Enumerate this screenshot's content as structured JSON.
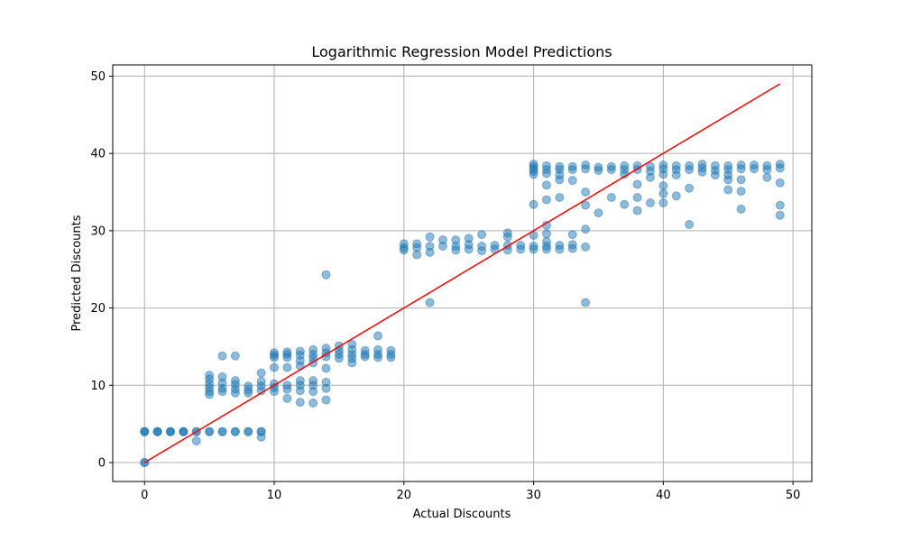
{
  "chart_data": {
    "type": "scatter",
    "title": "Logarithmic Regression Model Predictions",
    "xlabel": "Actual Discounts",
    "ylabel": "Predicted Discounts",
    "xlim": [
      -2.45,
      51.45
    ],
    "ylim": [
      -2.45,
      51.45
    ],
    "xticks": [
      0,
      10,
      20,
      30,
      40,
      50
    ],
    "yticks": [
      0,
      10,
      20,
      30,
      40,
      50
    ],
    "grid": true,
    "legend": "none",
    "colors": {
      "points": "#1f77b4",
      "line": "#ff0000",
      "grid": "#b0b0b0"
    },
    "point_alpha": 0.5,
    "reference_line": {
      "x": [
        0,
        49
      ],
      "y": [
        0,
        49
      ]
    },
    "points": [
      [
        0,
        0
      ],
      [
        0,
        0
      ],
      [
        0,
        4
      ],
      [
        0,
        4
      ],
      [
        0,
        4
      ],
      [
        1,
        4
      ],
      [
        1,
        4
      ],
      [
        1,
        4
      ],
      [
        2,
        4
      ],
      [
        2,
        4
      ],
      [
        2,
        4
      ],
      [
        3,
        4
      ],
      [
        3,
        4
      ],
      [
        3,
        4
      ],
      [
        4,
        4
      ],
      [
        4,
        4
      ],
      [
        4,
        2.8
      ],
      [
        5,
        4
      ],
      [
        5,
        4
      ],
      [
        5,
        11.3
      ],
      [
        5,
        10.8
      ],
      [
        5,
        10.2
      ],
      [
        5,
        9.7
      ],
      [
        5,
        9.2
      ],
      [
        5,
        8.8
      ],
      [
        6,
        4
      ],
      [
        6,
        4
      ],
      [
        6,
        13.8
      ],
      [
        6,
        11.1
      ],
      [
        6,
        10.3
      ],
      [
        6,
        9.6
      ],
      [
        6,
        9.2
      ],
      [
        7,
        4
      ],
      [
        7,
        4
      ],
      [
        7,
        13.8
      ],
      [
        7,
        10.6
      ],
      [
        7,
        10.1
      ],
      [
        7,
        9.5
      ],
      [
        7,
        9.0
      ],
      [
        8,
        4
      ],
      [
        8,
        4
      ],
      [
        8,
        9.9
      ],
      [
        8,
        9.4
      ],
      [
        8,
        9.0
      ],
      [
        9,
        4
      ],
      [
        9,
        4
      ],
      [
        9,
        3.3
      ],
      [
        9,
        11.6
      ],
      [
        9,
        10.5
      ],
      [
        9,
        9.9
      ],
      [
        9,
        9.3
      ],
      [
        10,
        14.2
      ],
      [
        10,
        13.9
      ],
      [
        10,
        13.6
      ],
      [
        10,
        12.3
      ],
      [
        10,
        10.2
      ],
      [
        10,
        9.7
      ],
      [
        10,
        9.2
      ],
      [
        11,
        14.3
      ],
      [
        11,
        14.0
      ],
      [
        11,
        13.6
      ],
      [
        11,
        12.3
      ],
      [
        11,
        10.0
      ],
      [
        11,
        9.5
      ],
      [
        11,
        8.3
      ],
      [
        12,
        14.4
      ],
      [
        12,
        13.9
      ],
      [
        12,
        13.2
      ],
      [
        12,
        12.5
      ],
      [
        12,
        10.6
      ],
      [
        12,
        10.0
      ],
      [
        12,
        9.3
      ],
      [
        12,
        7.8
      ],
      [
        13,
        14.6
      ],
      [
        13,
        14.0
      ],
      [
        13,
        13.5
      ],
      [
        13,
        12.9
      ],
      [
        13,
        10.6
      ],
      [
        13,
        10.0
      ],
      [
        13,
        9.2
      ],
      [
        13,
        7.7
      ],
      [
        14,
        24.3
      ],
      [
        14,
        14.8
      ],
      [
        14,
        14.2
      ],
      [
        14,
        13.7
      ],
      [
        14,
        12.2
      ],
      [
        14,
        10.4
      ],
      [
        14,
        9.6
      ],
      [
        14,
        8.1
      ],
      [
        15,
        15.1
      ],
      [
        15,
        14.5
      ],
      [
        15,
        14.0
      ],
      [
        15,
        13.5
      ],
      [
        16,
        15.3
      ],
      [
        16,
        14.6
      ],
      [
        16,
        14.0
      ],
      [
        16,
        13.5
      ],
      [
        16,
        12.9
      ],
      [
        17,
        14.5
      ],
      [
        17,
        14.0
      ],
      [
        17,
        13.7
      ],
      [
        18,
        16.4
      ],
      [
        18,
        14.6
      ],
      [
        18,
        14.0
      ],
      [
        18,
        13.6
      ],
      [
        19,
        14.5
      ],
      [
        19,
        14.0
      ],
      [
        19,
        13.6
      ],
      [
        20,
        28.3
      ],
      [
        20,
        27.8
      ],
      [
        20,
        27.5
      ],
      [
        21,
        28.3
      ],
      [
        21,
        27.8
      ],
      [
        21,
        26.9
      ],
      [
        22,
        29.2
      ],
      [
        22,
        28.0
      ],
      [
        22,
        27.2
      ],
      [
        22,
        20.7
      ],
      [
        23,
        28.8
      ],
      [
        23,
        28.0
      ],
      [
        24,
        28.8
      ],
      [
        24,
        28.0
      ],
      [
        24,
        27.5
      ],
      [
        25,
        29.0
      ],
      [
        25,
        28.2
      ],
      [
        25,
        27.6
      ],
      [
        26,
        29.5
      ],
      [
        26,
        28.0
      ],
      [
        26,
        27.4
      ],
      [
        27,
        28.1
      ],
      [
        27,
        27.6
      ],
      [
        28,
        29.7
      ],
      [
        28,
        29.2
      ],
      [
        28,
        28.1
      ],
      [
        28,
        27.5
      ],
      [
        29,
        28.1
      ],
      [
        29,
        27.6
      ],
      [
        30,
        38.6
      ],
      [
        30,
        38.3
      ],
      [
        30,
        38.0
      ],
      [
        30,
        37.7
      ],
      [
        30,
        37.3
      ],
      [
        30,
        33.4
      ],
      [
        30,
        29.4
      ],
      [
        30,
        28.0
      ],
      [
        30,
        27.6
      ],
      [
        31,
        38.4
      ],
      [
        31,
        37.9
      ],
      [
        31,
        37.4
      ],
      [
        31,
        35.9
      ],
      [
        31,
        34.0
      ],
      [
        31,
        30.7
      ],
      [
        31,
        29.6
      ],
      [
        31,
        28.6
      ],
      [
        31,
        28.0
      ],
      [
        31,
        27.6
      ],
      [
        32,
        38.3
      ],
      [
        32,
        37.9
      ],
      [
        32,
        37.2
      ],
      [
        32,
        36.6
      ],
      [
        32,
        34.3
      ],
      [
        32,
        28.1
      ],
      [
        32,
        27.6
      ],
      [
        33,
        38.3
      ],
      [
        33,
        37.9
      ],
      [
        33,
        36.5
      ],
      [
        33,
        29.5
      ],
      [
        33,
        28.2
      ],
      [
        33,
        27.7
      ],
      [
        34,
        38.5
      ],
      [
        34,
        38.0
      ],
      [
        34,
        35.0
      ],
      [
        34,
        33.3
      ],
      [
        34,
        30.2
      ],
      [
        34,
        27.9
      ],
      [
        34,
        20.7
      ],
      [
        35,
        38.2
      ],
      [
        35,
        37.8
      ],
      [
        35,
        32.3
      ],
      [
        36,
        38.3
      ],
      [
        36,
        37.9
      ],
      [
        36,
        34.3
      ],
      [
        37,
        38.4
      ],
      [
        37,
        37.9
      ],
      [
        37,
        37.3
      ],
      [
        37,
        33.4
      ],
      [
        38,
        38.4
      ],
      [
        38,
        37.9
      ],
      [
        38,
        36.0
      ],
      [
        38,
        34.3
      ],
      [
        38,
        32.6
      ],
      [
        39,
        38.3
      ],
      [
        39,
        37.7
      ],
      [
        39,
        36.9
      ],
      [
        39,
        33.6
      ],
      [
        40,
        38.5
      ],
      [
        40,
        38.0
      ],
      [
        40,
        37.3
      ],
      [
        40,
        35.8
      ],
      [
        40,
        34.8
      ],
      [
        40,
        33.6
      ],
      [
        41,
        38.4
      ],
      [
        41,
        37.9
      ],
      [
        41,
        37.2
      ],
      [
        41,
        34.5
      ],
      [
        42,
        38.4
      ],
      [
        42,
        37.9
      ],
      [
        42,
        35.5
      ],
      [
        42,
        30.8
      ],
      [
        43,
        38.6
      ],
      [
        43,
        38.1
      ],
      [
        43,
        37.6
      ],
      [
        44,
        38.4
      ],
      [
        44,
        37.8
      ],
      [
        44,
        37.2
      ],
      [
        45,
        38.4
      ],
      [
        45,
        37.9
      ],
      [
        45,
        37.2
      ],
      [
        45,
        36.6
      ],
      [
        45,
        35.3
      ],
      [
        46,
        38.5
      ],
      [
        46,
        38.0
      ],
      [
        46,
        36.6
      ],
      [
        46,
        35.1
      ],
      [
        46,
        32.8
      ],
      [
        47,
        38.5
      ],
      [
        47,
        38.0
      ],
      [
        48,
        38.4
      ],
      [
        48,
        37.9
      ],
      [
        48,
        36.9
      ],
      [
        49,
        38.6
      ],
      [
        49,
        38.1
      ],
      [
        49,
        36.2
      ],
      [
        49,
        33.3
      ],
      [
        49,
        32.0
      ]
    ]
  }
}
